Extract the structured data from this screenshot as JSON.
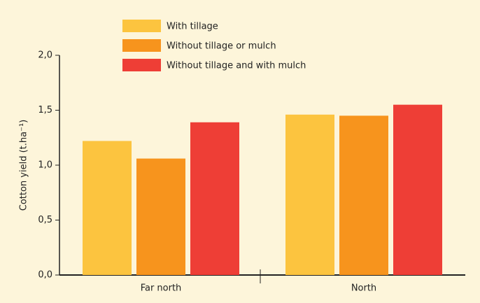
{
  "chart_data": {
    "type": "bar",
    "ylabel": "Cotton yield (t.ha⁻¹)",
    "categories": [
      "Far north",
      "North"
    ],
    "series": [
      {
        "name": "With tillage",
        "color": "#fcc43f",
        "values": [
          1.22,
          1.46
        ]
      },
      {
        "name": "Without tillage or mulch",
        "color": "#f7941d",
        "values": [
          1.06,
          1.45
        ]
      },
      {
        "name": "Without tillage and with mulch",
        "color": "#ee3e36",
        "values": [
          1.39,
          1.55
        ]
      }
    ],
    "ylim": [
      0,
      2
    ],
    "yticks": [
      {
        "value": 0,
        "label": "0,0"
      },
      {
        "value": 0.5,
        "label": "0,5"
      },
      {
        "value": 1,
        "label": "1,0"
      },
      {
        "value": 1.5,
        "label": "1,5"
      },
      {
        "value": 2,
        "label": "2,0"
      }
    ],
    "grid": false
  }
}
